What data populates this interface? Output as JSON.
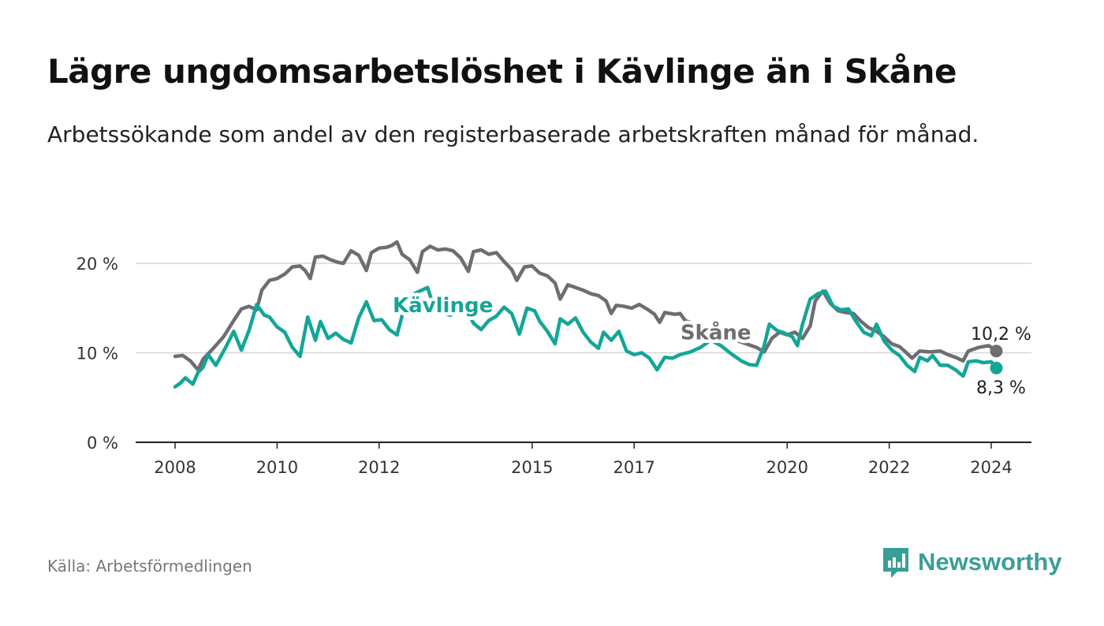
{
  "header": {
    "title": "Lägre ungdomsarbetslöshet i Kävlinge än i Skåne",
    "subtitle": "Arbetssökande som andel av den registerbaserade arbetskraften månad för månad."
  },
  "footer": {
    "source": "Källa: Arbetsförmedlingen",
    "brand": "Newsworthy",
    "brand_icon": "bar-chart-icon",
    "brand_color": "#3a9e98"
  },
  "chart_data": {
    "type": "line",
    "title": "Lägre ungdomsarbetslöshet i Kävlinge än i Skåne",
    "subtitle": "Arbetssökande som andel av den registerbaserade arbetskraften månad för månad.",
    "xlabel": "",
    "ylabel": "",
    "ylim": [
      0,
      20
    ],
    "xlim": [
      2008,
      2024.2
    ],
    "grid": true,
    "y_ticks": [
      {
        "value": 0,
        "label": "0 %"
      },
      {
        "value": 10,
        "label": "10 %"
      },
      {
        "value": 20,
        "label": "20 %"
      }
    ],
    "x_ticks": [
      {
        "value": 2008,
        "label": "2008"
      },
      {
        "value": 2010,
        "label": "2010"
      },
      {
        "value": 2012,
        "label": "2012"
      },
      {
        "value": 2015,
        "label": "2015"
      },
      {
        "value": 2017,
        "label": "2017"
      },
      {
        "value": 2020,
        "label": "2020"
      },
      {
        "value": 2022,
        "label": "2022"
      },
      {
        "value": 2024,
        "label": "2024"
      }
    ],
    "series": [
      {
        "name": "Skåne",
        "color": "#6e6e72",
        "last_value_label": "10,2 %",
        "points": [
          [
            2008.0,
            9.6
          ],
          [
            2008.15,
            9.7
          ],
          [
            2008.3,
            9.1
          ],
          [
            2008.45,
            8.1
          ],
          [
            2008.55,
            9.3
          ],
          [
            2008.75,
            10.5
          ],
          [
            2008.95,
            11.8
          ],
          [
            2009.15,
            13.6
          ],
          [
            2009.3,
            14.9
          ],
          [
            2009.45,
            15.2
          ],
          [
            2009.6,
            14.8
          ],
          [
            2009.7,
            17.0
          ],
          [
            2009.85,
            18.1
          ],
          [
            2010.0,
            18.3
          ],
          [
            2010.15,
            18.8
          ],
          [
            2010.3,
            19.6
          ],
          [
            2010.45,
            19.7
          ],
          [
            2010.55,
            19.2
          ],
          [
            2010.65,
            18.3
          ],
          [
            2010.75,
            20.7
          ],
          [
            2010.9,
            20.8
          ],
          [
            2011.05,
            20.4
          ],
          [
            2011.2,
            20.1
          ],
          [
            2011.3,
            20.0
          ],
          [
            2011.45,
            21.4
          ],
          [
            2011.6,
            20.9
          ],
          [
            2011.75,
            19.2
          ],
          [
            2011.85,
            21.2
          ],
          [
            2012.0,
            21.7
          ],
          [
            2012.15,
            21.8
          ],
          [
            2012.25,
            22.0
          ],
          [
            2012.35,
            22.4
          ],
          [
            2012.45,
            21.0
          ],
          [
            2012.6,
            20.4
          ],
          [
            2012.75,
            19.0
          ],
          [
            2012.85,
            21.3
          ],
          [
            2013.0,
            21.9
          ],
          [
            2013.15,
            21.5
          ],
          [
            2013.3,
            21.6
          ],
          [
            2013.45,
            21.4
          ],
          [
            2013.6,
            20.6
          ],
          [
            2013.75,
            19.1
          ],
          [
            2013.85,
            21.3
          ],
          [
            2014.0,
            21.5
          ],
          [
            2014.15,
            21.0
          ],
          [
            2014.3,
            21.2
          ],
          [
            2014.45,
            20.2
          ],
          [
            2014.6,
            19.3
          ],
          [
            2014.7,
            18.1
          ],
          [
            2014.85,
            19.6
          ],
          [
            2015.0,
            19.7
          ],
          [
            2015.15,
            18.9
          ],
          [
            2015.3,
            18.6
          ],
          [
            2015.45,
            17.8
          ],
          [
            2015.55,
            16.0
          ],
          [
            2015.7,
            17.6
          ],
          [
            2015.85,
            17.3
          ],
          [
            2016.0,
            17.0
          ],
          [
            2016.15,
            16.6
          ],
          [
            2016.3,
            16.4
          ],
          [
            2016.45,
            15.8
          ],
          [
            2016.55,
            14.4
          ],
          [
            2016.65,
            15.3
          ],
          [
            2016.8,
            15.2
          ],
          [
            2016.95,
            15.0
          ],
          [
            2017.1,
            15.4
          ],
          [
            2017.25,
            14.9
          ],
          [
            2017.4,
            14.3
          ],
          [
            2017.5,
            13.4
          ],
          [
            2017.6,
            14.5
          ],
          [
            2017.8,
            14.3
          ],
          [
            2017.9,
            14.4
          ],
          [
            2018.0,
            13.6
          ],
          [
            2018.2,
            13.2
          ],
          [
            2018.4,
            12.7
          ],
          [
            2018.6,
            12.2
          ],
          [
            2018.8,
            11.9
          ],
          [
            2019.0,
            11.4
          ],
          [
            2019.2,
            11.0
          ],
          [
            2019.4,
            10.6
          ],
          [
            2019.55,
            10.1
          ],
          [
            2019.7,
            11.6
          ],
          [
            2019.85,
            12.3
          ],
          [
            2020.0,
            12.0
          ],
          [
            2020.15,
            12.3
          ],
          [
            2020.3,
            11.6
          ],
          [
            2020.45,
            13.0
          ],
          [
            2020.55,
            15.8
          ],
          [
            2020.7,
            16.9
          ],
          [
            2020.85,
            15.5
          ],
          [
            2021.0,
            14.7
          ],
          [
            2021.15,
            14.5
          ],
          [
            2021.3,
            14.4
          ],
          [
            2021.45,
            13.5
          ],
          [
            2021.6,
            12.8
          ],
          [
            2021.75,
            12.4
          ],
          [
            2021.9,
            11.8
          ],
          [
            2022.05,
            11.0
          ],
          [
            2022.2,
            10.7
          ],
          [
            2022.3,
            10.2
          ],
          [
            2022.45,
            9.4
          ],
          [
            2022.6,
            10.2
          ],
          [
            2022.8,
            10.1
          ],
          [
            2023.0,
            10.2
          ],
          [
            2023.15,
            9.8
          ],
          [
            2023.3,
            9.5
          ],
          [
            2023.45,
            9.1
          ],
          [
            2023.55,
            10.2
          ],
          [
            2023.75,
            10.6
          ],
          [
            2023.95,
            10.8
          ],
          [
            2024.1,
            10.2
          ]
        ]
      },
      {
        "name": "Kävlinge",
        "color": "#13a697",
        "last_value_label": "8,3 %",
        "points": [
          [
            2008.0,
            6.2
          ],
          [
            2008.1,
            6.6
          ],
          [
            2008.2,
            7.2
          ],
          [
            2008.35,
            6.5
          ],
          [
            2008.45,
            7.8
          ],
          [
            2008.55,
            8.4
          ],
          [
            2008.65,
            9.8
          ],
          [
            2008.8,
            8.6
          ],
          [
            2009.0,
            10.7
          ],
          [
            2009.15,
            12.4
          ],
          [
            2009.3,
            10.3
          ],
          [
            2009.45,
            12.5
          ],
          [
            2009.6,
            15.4
          ],
          [
            2009.75,
            14.2
          ],
          [
            2009.85,
            14.0
          ],
          [
            2010.0,
            12.9
          ],
          [
            2010.15,
            12.3
          ],
          [
            2010.3,
            10.6
          ],
          [
            2010.45,
            9.6
          ],
          [
            2010.6,
            14.0
          ],
          [
            2010.75,
            11.4
          ],
          [
            2010.85,
            13.5
          ],
          [
            2011.0,
            11.6
          ],
          [
            2011.15,
            12.2
          ],
          [
            2011.3,
            11.5
          ],
          [
            2011.45,
            11.1
          ],
          [
            2011.6,
            13.9
          ],
          [
            2011.75,
            15.7
          ],
          [
            2011.9,
            13.6
          ],
          [
            2012.05,
            13.7
          ],
          [
            2012.2,
            12.6
          ],
          [
            2012.35,
            12.0
          ],
          [
            2012.5,
            15.2
          ],
          [
            2012.65,
            16.5
          ],
          [
            2012.8,
            16.9
          ],
          [
            2012.95,
            17.3
          ],
          [
            2013.1,
            14.6
          ],
          [
            2013.25,
            14.4
          ],
          [
            2013.4,
            14.2
          ],
          [
            2013.55,
            14.7
          ],
          [
            2013.7,
            15.0
          ],
          [
            2013.85,
            13.3
          ],
          [
            2014.0,
            12.6
          ],
          [
            2014.15,
            13.6
          ],
          [
            2014.3,
            14.1
          ],
          [
            2014.45,
            15.1
          ],
          [
            2014.6,
            14.4
          ],
          [
            2014.75,
            12.1
          ],
          [
            2014.9,
            15.0
          ],
          [
            2015.05,
            14.7
          ],
          [
            2015.15,
            13.5
          ],
          [
            2015.3,
            12.4
          ],
          [
            2015.45,
            11.0
          ],
          [
            2015.55,
            13.8
          ],
          [
            2015.7,
            13.2
          ],
          [
            2015.85,
            13.9
          ],
          [
            2016.0,
            12.3
          ],
          [
            2016.15,
            11.2
          ],
          [
            2016.3,
            10.5
          ],
          [
            2016.4,
            12.3
          ],
          [
            2016.55,
            11.4
          ],
          [
            2016.7,
            12.4
          ],
          [
            2016.85,
            10.2
          ],
          [
            2017.0,
            9.8
          ],
          [
            2017.15,
            10.0
          ],
          [
            2017.3,
            9.4
          ],
          [
            2017.45,
            8.1
          ],
          [
            2017.6,
            9.5
          ],
          [
            2017.75,
            9.4
          ],
          [
            2017.9,
            9.8
          ],
          [
            2018.1,
            10.1
          ],
          [
            2018.3,
            10.6
          ],
          [
            2018.5,
            11.4
          ],
          [
            2018.7,
            10.8
          ],
          [
            2018.9,
            9.9
          ],
          [
            2019.1,
            9.1
          ],
          [
            2019.25,
            8.7
          ],
          [
            2019.4,
            8.6
          ],
          [
            2019.55,
            10.8
          ],
          [
            2019.65,
            13.2
          ],
          [
            2019.8,
            12.5
          ],
          [
            2019.95,
            12.2
          ],
          [
            2020.1,
            11.8
          ],
          [
            2020.2,
            10.8
          ],
          [
            2020.3,
            13.2
          ],
          [
            2020.45,
            16.0
          ],
          [
            2020.6,
            16.6
          ],
          [
            2020.75,
            16.9
          ],
          [
            2020.9,
            15.2
          ],
          [
            2021.05,
            14.8
          ],
          [
            2021.2,
            14.9
          ],
          [
            2021.35,
            13.5
          ],
          [
            2021.5,
            12.3
          ],
          [
            2021.65,
            11.9
          ],
          [
            2021.75,
            13.2
          ],
          [
            2021.9,
            11.3
          ],
          [
            2022.05,
            10.3
          ],
          [
            2022.2,
            9.7
          ],
          [
            2022.35,
            8.6
          ],
          [
            2022.5,
            7.9
          ],
          [
            2022.6,
            9.5
          ],
          [
            2022.75,
            9.1
          ],
          [
            2022.85,
            9.7
          ],
          [
            2023.0,
            8.6
          ],
          [
            2023.15,
            8.6
          ],
          [
            2023.3,
            8.1
          ],
          [
            2023.45,
            7.4
          ],
          [
            2023.55,
            9.0
          ],
          [
            2023.7,
            9.1
          ],
          [
            2023.85,
            8.9
          ],
          [
            2024.0,
            9.0
          ],
          [
            2024.1,
            8.3
          ]
        ]
      }
    ],
    "annotations": [
      {
        "text": "Kävlinge",
        "series": "Kävlinge",
        "x": 2013.25,
        "y": 15.4
      },
      {
        "text": "Skåne",
        "series": "Skåne",
        "x": 2018.6,
        "y": 12.4
      },
      {
        "text": "10,2 %",
        "series": "Skåne",
        "x": 2024.1,
        "y": 10.2
      },
      {
        "text": "8,3 %",
        "series": "Kävlinge",
        "x": 2024.1,
        "y": 8.3
      }
    ]
  }
}
